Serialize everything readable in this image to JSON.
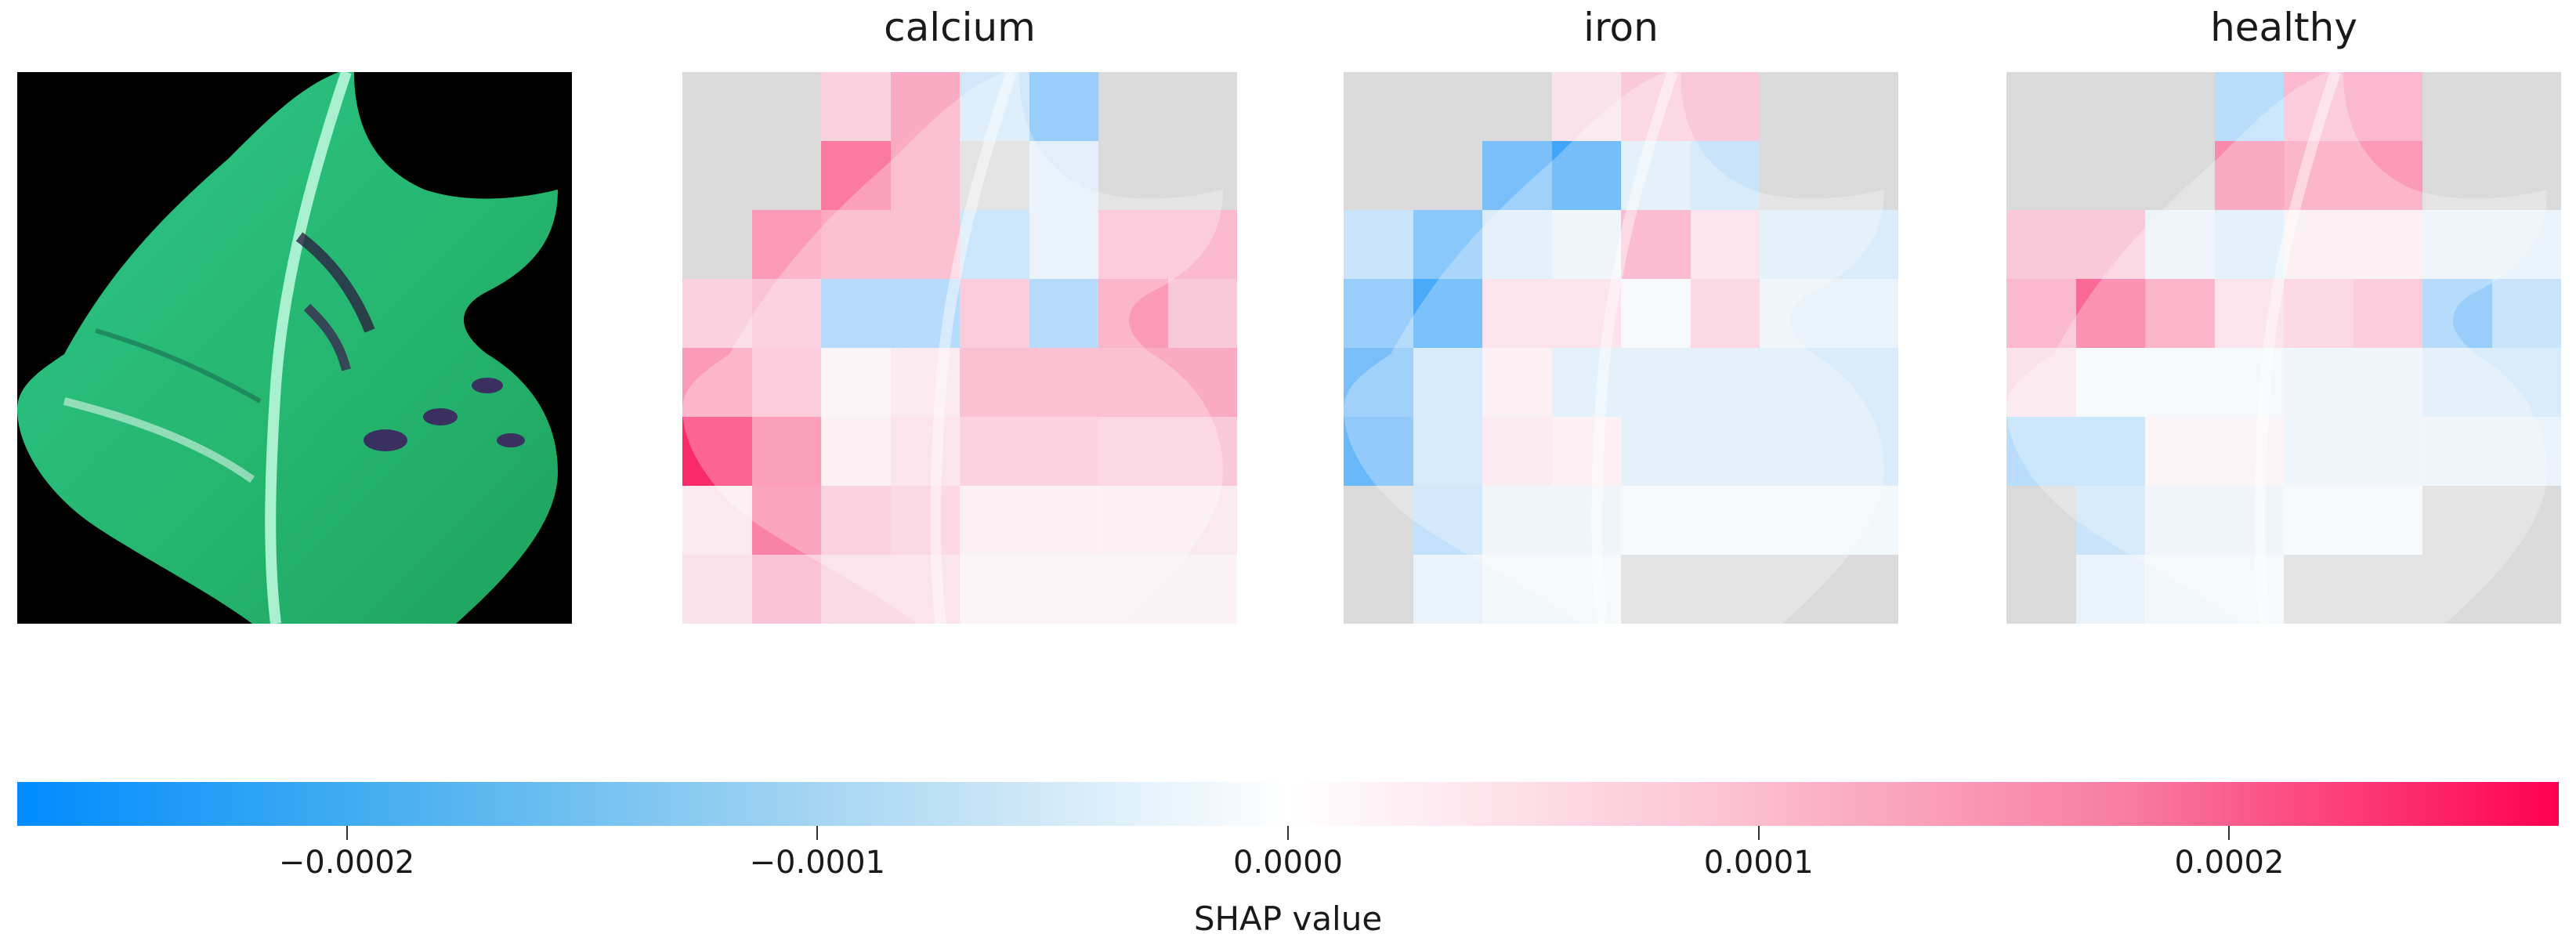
{
  "chart_data": {
    "type": "heatmap",
    "description_colorscale": "blue negative, white zero, red positive",
    "grid_rows": 8,
    "grid_cols": 8,
    "vmin": -0.00027,
    "vmax": 0.00027,
    "colorbar": {
      "label": "SHAP value",
      "ticks": [
        -0.0002,
        -0.0001,
        0.0,
        0.0001,
        0.0002
      ],
      "tick_labels": [
        "−0.0002",
        "−0.0001",
        "0.0000",
        "0.0001",
        "0.0002"
      ],
      "low_color": "#008bff",
      "mid_color": "#ffffff",
      "high_color": "#ff0050"
    },
    "panels": [
      {
        "title": "calcium",
        "values": [
          [
            0,
            0,
            5e-05,
            0.0001,
            -5e-05,
            -0.00012,
            0,
            0
          ],
          [
            0,
            0,
            0.00016,
            0.0001,
            0,
            -3e-05,
            0,
            0
          ],
          [
            0,
            0.00012,
            0.0001,
            0.0001,
            -8e-05,
            -3e-05,
            8e-05,
            8e-05
          ],
          [
            5e-05,
            7e-05,
            -0.00012,
            -0.00012,
            8e-05,
            -0.00012,
            0.00012,
            6e-05
          ],
          [
            0.00012,
            8e-05,
            1e-05,
            3e-05,
            0.0001,
            0.0001,
            0.0001,
            0.0001
          ],
          [
            0.00026,
            0.00016,
            2e-05,
            4e-05,
            7e-05,
            7e-05,
            6e-05,
            6e-05
          ],
          [
            2e-05,
            0.00015,
            7e-05,
            6e-05,
            2e-05,
            2e-05,
            2e-05,
            2e-05
          ],
          [
            3e-05,
            7e-05,
            4e-05,
            4e-05,
            1e-05,
            1e-05,
            1e-05,
            1e-05
          ]
        ]
      },
      {
        "title": "iron",
        "values": [
          [
            0,
            0,
            0,
            3e-05,
            6e-05,
            6e-05,
            0,
            0
          ],
          [
            0,
            0,
            -0.00016,
            -0.00023,
            -4e-05,
            -6e-05,
            0,
            0
          ],
          [
            -6e-05,
            -0.00014,
            -4e-05,
            -2e-05,
            0.00011,
            4e-05,
            -4e-05,
            -4e-05
          ],
          [
            -0.00012,
            -0.00022,
            4e-05,
            4e-05,
            -1e-05,
            6e-05,
            -2e-05,
            -2e-05
          ],
          [
            -0.00016,
            -6e-05,
            2e-05,
            -4e-05,
            -4e-05,
            -4e-05,
            -4e-05,
            -4e-05
          ],
          [
            -0.00018,
            -6e-05,
            3e-05,
            2e-05,
            -4e-05,
            -4e-05,
            -4e-05,
            -4e-05
          ],
          [
            0,
            -7e-05,
            -2e-05,
            -2e-05,
            -1e-05,
            -1e-05,
            -1e-05,
            -1e-05
          ],
          [
            0,
            -2e-05,
            -1e-05,
            -1e-05,
            0,
            0,
            0,
            0
          ]
        ]
      },
      {
        "title": "healthy",
        "values": [
          [
            0,
            0,
            0,
            -8e-05,
            8e-05,
            8e-05,
            0,
            0
          ],
          [
            0,
            0,
            0,
            0.00014,
            0.00012,
            0.00012,
            0,
            0
          ],
          [
            6e-05,
            6e-05,
            -2e-05,
            -4e-05,
            2e-05,
            2e-05,
            -2e-05,
            -2e-05
          ],
          [
            8e-05,
            0.00018,
            0.00012,
            4e-05,
            6e-05,
            8e-05,
            -0.00012,
            -6e-05
          ],
          [
            3e-05,
            -1e-05,
            -1e-05,
            -1e-05,
            -2e-05,
            -2e-05,
            -4e-05,
            -4e-05
          ],
          [
            -8e-05,
            -8e-05,
            1e-05,
            1e-05,
            -2e-05,
            -2e-05,
            -2e-05,
            -2e-05
          ],
          [
            0,
            -6e-05,
            -2e-05,
            -2e-05,
            -1e-05,
            -1e-05,
            0,
            0
          ],
          [
            0,
            -2e-05,
            -1e-05,
            -1e-05,
            0,
            0,
            0,
            0
          ]
        ]
      }
    ]
  }
}
